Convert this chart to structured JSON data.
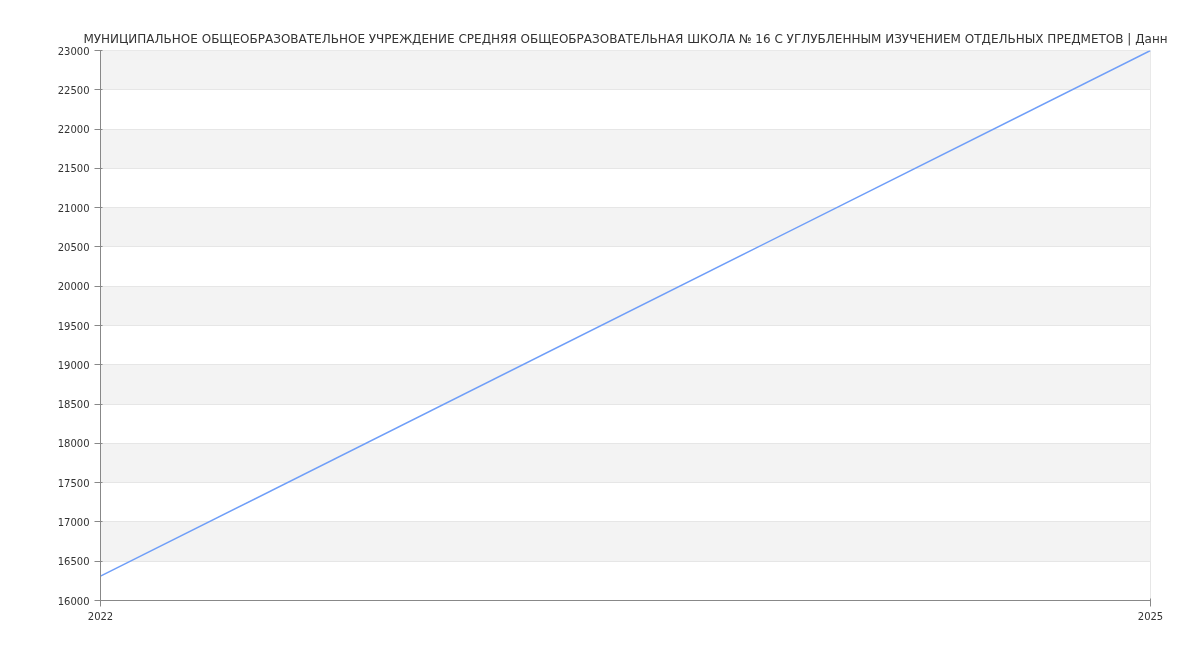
{
  "chart_data": {
    "type": "line",
    "title": "МУНИЦИПАЛЬНОЕ ОБЩЕОБРАЗОВАТЕЛЬНОЕ УЧРЕЖДЕНИЕ СРЕДНЯЯ ОБЩЕОБРАЗОВАТЕЛЬНАЯ ШКОЛА № 16 С УГЛУБЛЕННЫМ ИЗУЧЕНИЕМ ОТДЕЛЬНЫХ ПРЕДМЕТОВ | Данн",
    "x": [
      2022,
      2025
    ],
    "series": [
      {
        "color": "#6f9ef8",
        "values": [
          16310,
          23000
        ]
      }
    ],
    "xlim": [
      2022,
      2025
    ],
    "xticks": [
      2022,
      2025
    ],
    "ylim": [
      16000,
      23000
    ],
    "yticks": [
      16000,
      16500,
      17000,
      17500,
      18000,
      18500,
      19000,
      19500,
      20000,
      20500,
      21000,
      21500,
      22000,
      22500,
      23000
    ],
    "grid": "y",
    "marker": "none",
    "line_style": "solid"
  }
}
